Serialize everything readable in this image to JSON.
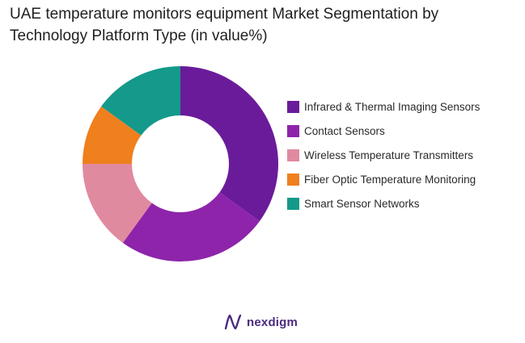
{
  "title": "UAE temperature monitors equipment Market Segmentation by Technology Platform Type (in value%)",
  "brand": {
    "name": "nexdigm",
    "logo_icon": "nexdigm-logo-icon",
    "color": "#4b2a80"
  },
  "chart_data": {
    "type": "pie",
    "variant": "donut",
    "title": "UAE temperature monitors equipment Market Segmentation by Technology Platform Type (in value%)",
    "legend_position": "right",
    "start_angle_deg": 0,
    "direction": "clockwise",
    "series": [
      {
        "name": "Infrared & Thermal Imaging Sensors",
        "value": 35,
        "color": "#6a1b9a"
      },
      {
        "name": "Contact Sensors",
        "value": 25,
        "color": "#8e24aa"
      },
      {
        "name": "Wireless Temperature Transmitters",
        "value": 15,
        "color": "#e08aa0"
      },
      {
        "name": "Fiber Optic Temperature Monitoring",
        "value": 10,
        "color": "#f07f1e"
      },
      {
        "name": "Smart Sensor Networks",
        "value": 15,
        "color": "#14998a"
      }
    ]
  }
}
